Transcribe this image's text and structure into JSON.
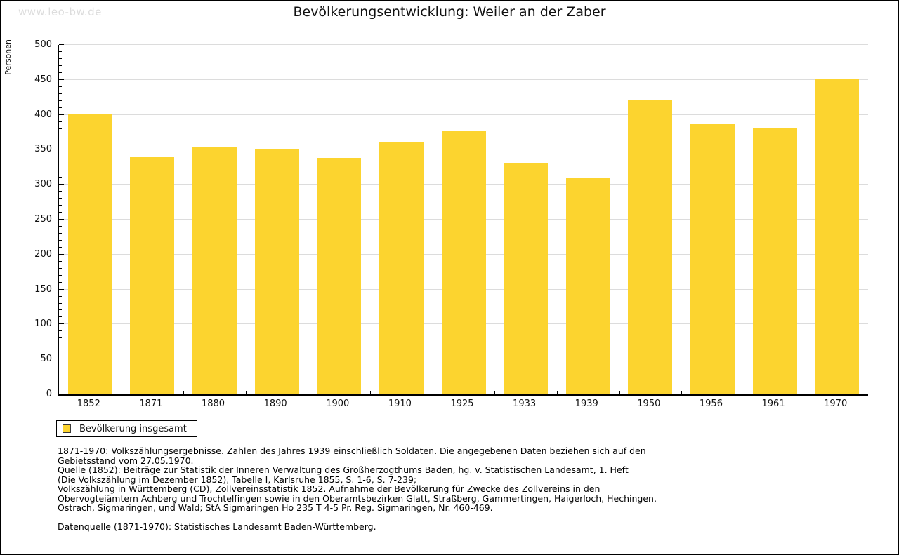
{
  "watermark": "www.leo-bw.de",
  "title": "Bevölkerungsentwicklung: Weiler an der Zaber",
  "chart_data": {
    "type": "bar",
    "title": "Bevölkerungsentwicklung: Weiler an der Zaber",
    "xlabel": "",
    "ylabel": "Personen",
    "ylim": [
      0,
      500
    ],
    "y_major_step": 50,
    "y_minor_step": 10,
    "grid": true,
    "legend_position": "bottom-left",
    "bar_color": "#FCD42F",
    "categories": [
      "1852",
      "1871",
      "1880",
      "1890",
      "1900",
      "1910",
      "1925",
      "1933",
      "1939",
      "1950",
      "1956",
      "1961",
      "1970"
    ],
    "series": [
      {
        "name": "Bevölkerung insgesamt",
        "values": [
          401,
          339,
          354,
          351,
          338,
          361,
          377,
          330,
          310,
          421,
          387,
          381,
          451
        ]
      }
    ]
  },
  "legend": {
    "label": "Bevölkerung insgesamt",
    "swatch_color": "#FCD42F"
  },
  "footer": {
    "lines": [
      "1871-1970: Volkszählungsergebnisse. Zahlen des Jahres 1939 einschließlich Soldaten. Die angegebenen Daten beziehen sich auf den",
      "Gebietsstand vom 27.05.1970.",
      "Quelle (1852): Beiträge zur Statistik der Inneren Verwaltung des Großherzogthums Baden, hg. v. Statistischen Landesamt, 1. Heft",
      "(Die Volkszählung im Dezember 1852), Tabelle I, Karlsruhe 1855, S. 1-6, S. 7-239;",
      "Volkszählung in Württemberg (CD), Zollvereinsstatistik 1852. Aufnahme der Bevölkerung für Zwecke des Zollvereins in den",
      "Obervogteiämtern Achberg und Trochtelfingen sowie in den Oberamtsbezirken Glatt, Straßberg, Gammertingen, Haigerloch, Hechingen,",
      "Ostrach, Sigmaringen, und Wald; StA Sigmaringen Ho 235 T 4-5 Pr. Reg. Sigmaringen, Nr. 460-469.",
      "",
      "Datenquelle (1871-1970): Statistisches Landesamt Baden-Württemberg."
    ]
  },
  "colors": {
    "bar": "#FCD42F",
    "grid": "#DCDCDC",
    "axis": "#000000",
    "watermark": "#DDDDDD",
    "text": "#111111"
  }
}
